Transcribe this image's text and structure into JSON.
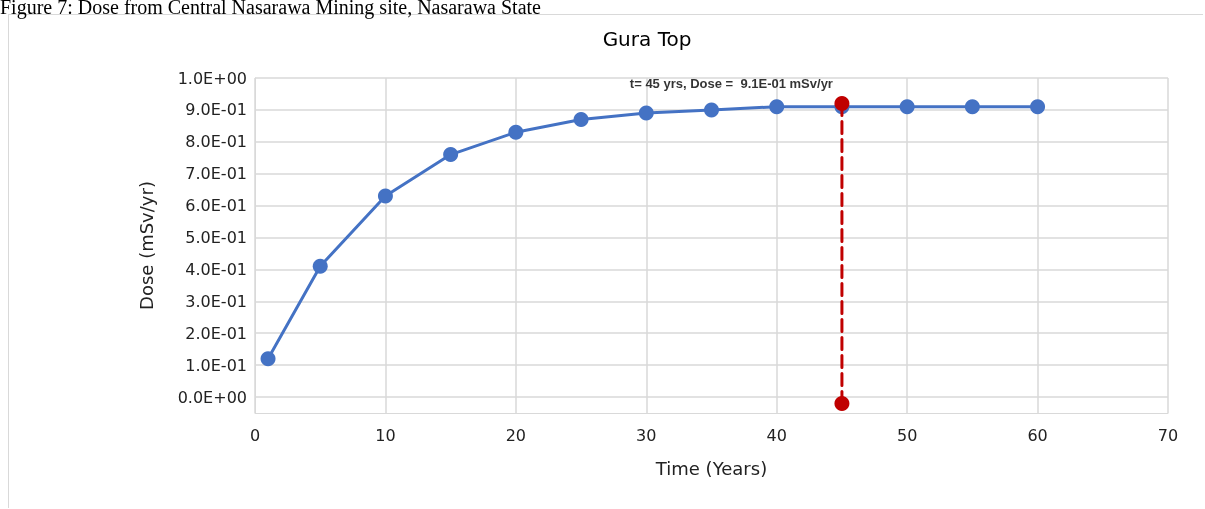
{
  "chart_data": {
    "type": "line",
    "title": "Gura Top",
    "xlabel": "Time (Years)",
    "ylabel": "Dose (mSv/yr)",
    "annotations": [
      "Figure 7: Dose from Central Nasarawa Mining site, Nasarawa State",
      {
        "text": "t= 45 yrs, Dose =  9.1E-01 mSv/yr",
        "x": 45,
        "y": 0.92
      }
    ],
    "series": [
      {
        "color": "#4472c4",
        "x": [
          1,
          5,
          10,
          15,
          20,
          25,
          30,
          35,
          40,
          45,
          50,
          55,
          60
        ],
        "values": [
          0.12,
          0.41,
          0.63,
          0.76,
          0.83,
          0.87,
          0.89,
          0.9,
          0.91,
          0.91,
          0.91,
          0.91,
          0.91
        ],
        "marker": "circle",
        "line_style": "solid"
      },
      {
        "color": "#c00000",
        "x": [
          45,
          45
        ],
        "values": [
          0.92,
          -0.02
        ],
        "marker": "circle",
        "line_style": "dashed"
      }
    ],
    "xlim": [
      0,
      70
    ],
    "xticks": [
      0,
      10,
      20,
      30,
      40,
      50,
      60,
      70
    ],
    "ylim": [
      -0.05,
      1.0
    ],
    "yticks": [
      {
        "value": 0,
        "label": "0.0E+00"
      },
      {
        "value": 0.1,
        "label": "1.0E-01"
      },
      {
        "value": 0.2,
        "label": "2.0E-01"
      },
      {
        "value": 0.3,
        "label": "3.0E-01"
      },
      {
        "value": 0.4,
        "label": "4.0E-01"
      },
      {
        "value": 0.5,
        "label": "5.0E-01"
      },
      {
        "value": 0.6,
        "label": "6.0E-01"
      },
      {
        "value": 0.7,
        "label": "7.0E-01"
      },
      {
        "value": 0.8,
        "label": "8.0E-01"
      },
      {
        "value": 0.9,
        "label": "9.0E-01"
      },
      {
        "value": 1.0,
        "label": "1.0E+00"
      }
    ],
    "grid": true
  }
}
